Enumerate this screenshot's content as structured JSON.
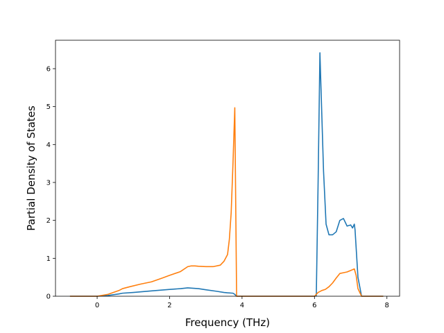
{
  "chart_data": {
    "type": "line",
    "title": "",
    "xlabel": "Frequency (THz)",
    "ylabel": "Partial Density of States",
    "xlim": [
      -1.15,
      8.35
    ],
    "ylim": [
      0,
      6.75
    ],
    "xticks": [
      0,
      2,
      4,
      6,
      8
    ],
    "yticks": [
      0,
      1,
      2,
      3,
      4,
      5,
      6
    ],
    "grid": false,
    "legend": "none",
    "series": [
      {
        "color": "#1f77b4",
        "x": [
          -0.75,
          0.0,
          0.3,
          0.6,
          0.7,
          1.0,
          1.5,
          2.0,
          2.3,
          2.5,
          2.8,
          3.0,
          3.3,
          3.5,
          3.6,
          3.75,
          3.8,
          3.85,
          4.0,
          5.0,
          6.0,
          6.05,
          6.1,
          6.15,
          6.25,
          6.32,
          6.4,
          6.5,
          6.6,
          6.7,
          6.8,
          6.9,
          7.0,
          7.05,
          7.1,
          7.12,
          7.2,
          7.3,
          7.9
        ],
        "y": [
          0,
          0,
          0.02,
          0.06,
          0.08,
          0.1,
          0.14,
          0.18,
          0.2,
          0.22,
          0.2,
          0.17,
          0.13,
          0.1,
          0.09,
          0.08,
          0.05,
          0,
          0,
          0,
          0,
          0.01,
          3.0,
          6.42,
          3.3,
          1.9,
          1.62,
          1.62,
          1.7,
          2.0,
          2.05,
          1.85,
          1.88,
          1.8,
          1.9,
          1.75,
          0.5,
          0,
          0
        ]
      },
      {
        "color": "#ff7f0e",
        "x": [
          -0.75,
          0.0,
          0.3,
          0.6,
          0.7,
          0.9,
          1.2,
          1.5,
          1.8,
          2.0,
          2.3,
          2.5,
          2.6,
          2.7,
          2.8,
          3.0,
          3.2,
          3.4,
          3.5,
          3.6,
          3.65,
          3.7,
          3.75,
          3.8,
          3.85,
          4.0,
          5.0,
          6.0,
          6.1,
          6.2,
          6.3,
          6.4,
          6.5,
          6.6,
          6.7,
          6.8,
          6.9,
          7.0,
          7.1,
          7.15,
          7.2,
          7.3,
          7.9
        ],
        "y": [
          0,
          0,
          0.05,
          0.15,
          0.2,
          0.25,
          0.32,
          0.38,
          0.48,
          0.55,
          0.65,
          0.78,
          0.8,
          0.8,
          0.79,
          0.78,
          0.78,
          0.82,
          0.92,
          1.1,
          1.5,
          2.2,
          3.5,
          4.97,
          0,
          0,
          0,
          0,
          0.1,
          0.15,
          0.18,
          0.25,
          0.35,
          0.48,
          0.6,
          0.62,
          0.64,
          0.68,
          0.72,
          0.55,
          0.2,
          0,
          0
        ]
      }
    ]
  }
}
